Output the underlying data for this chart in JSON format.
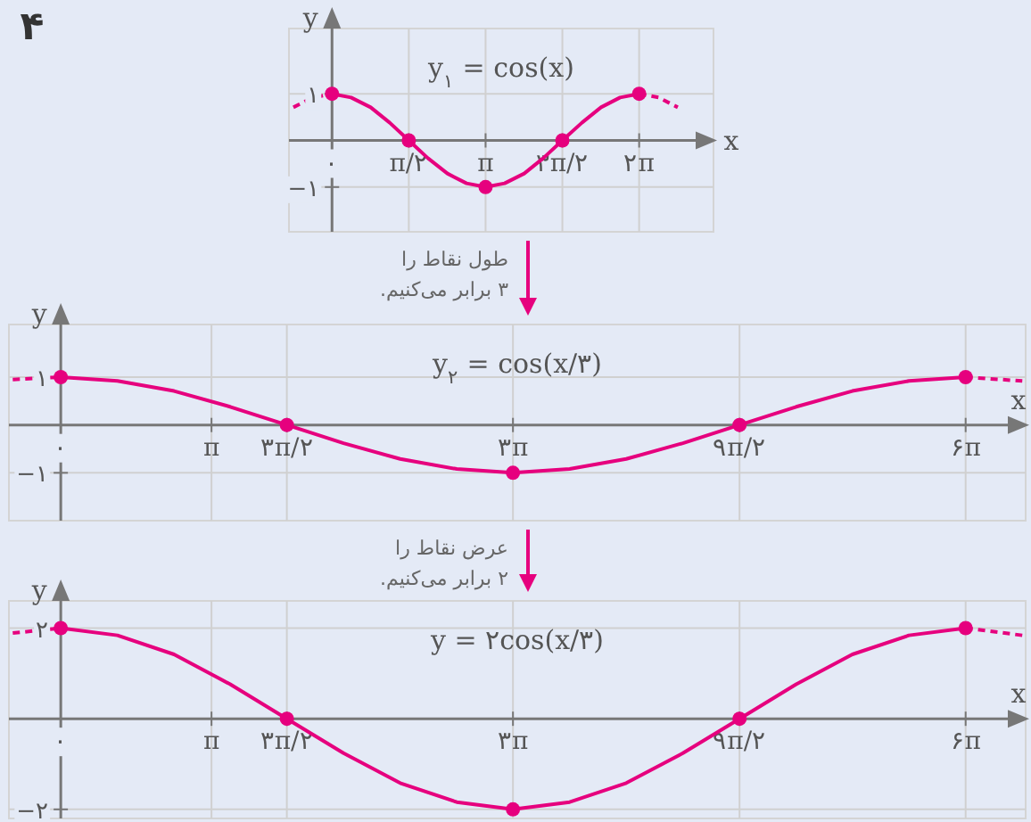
{
  "chart_data": [
    {
      "type": "line",
      "title": "y$_{۱}$ = cos(x)",
      "xlabel": "x",
      "ylabel": "y",
      "annotations": [
        "۴"
      ],
      "grid": true,
      "xlim": [
        -0.88,
        7.8
      ],
      "ylim": [
        -1.96,
        2.4
      ],
      "xticks": [
        {
          "value": 0,
          "label": "۰"
        },
        {
          "value": 1.57,
          "label": "π/۲"
        },
        {
          "value": 3.14,
          "label": "π"
        },
        {
          "value": 4.71,
          "label": "۳π/۲"
        },
        {
          "value": 6.28,
          "label": "۲π"
        }
      ],
      "yticks": [
        {
          "value": 1,
          "label": "۱"
        },
        {
          "value": -1,
          "label": "−۱"
        }
      ],
      "series": [
        {
          "type": "line",
          "color": "#e6007e",
          "line_style": "solid",
          "marker": "none",
          "x": [
            0,
            0.39,
            0.79,
            1.18,
            1.57,
            1.96,
            2.36,
            2.75,
            3.14,
            3.53,
            3.93,
            4.32,
            4.71,
            5.11,
            5.5,
            5.89,
            6.28
          ],
          "values": [
            1,
            0.92,
            0.71,
            0.38,
            0,
            -0.38,
            -0.71,
            -0.92,
            -1,
            -0.92,
            -0.71,
            -0.38,
            0,
            0.38,
            0.71,
            0.92,
            1
          ]
        },
        {
          "type": "line",
          "color": "#e6007e",
          "line_style": "dashed",
          "marker": "none",
          "x": [
            -0.79,
            -0.39,
            0
          ],
          "values": [
            0.71,
            0.92,
            1
          ]
        },
        {
          "type": "line",
          "color": "#e6007e",
          "line_style": "dashed",
          "marker": "none",
          "x": [
            6.28,
            6.68,
            7.07
          ],
          "values": [
            1,
            0.92,
            0.71
          ]
        },
        {
          "type": "scatter",
          "color": "#e6007e",
          "marker": "circle",
          "x": [
            0,
            1.57,
            3.14,
            4.71,
            6.28
          ],
          "values": [
            1,
            0,
            -1,
            0,
            1
          ]
        }
      ]
    },
    {
      "type": "line",
      "title": "y$_{۲}$ = cos(x/۳)",
      "xlabel": "x",
      "ylabel": "y",
      "annotations": [
        "طول نقاط را",
        "۳ برابر می‌کنیم."
      ],
      "grid": true,
      "xlim": [
        -1.08,
        20.1
      ],
      "ylim": [
        -2,
        2.1
      ],
      "xticks": [
        {
          "value": 0,
          "label": "۰"
        },
        {
          "value": 3.14,
          "label": "π"
        },
        {
          "value": 4.71,
          "label": "۳π/۲"
        },
        {
          "value": 9.42,
          "label": "۳π"
        },
        {
          "value": 14.14,
          "label": "۹π/۲"
        },
        {
          "value": 18.85,
          "label": "۶π"
        }
      ],
      "yticks": [
        {
          "value": 1,
          "label": "۱"
        },
        {
          "value": -1,
          "label": "−۱"
        }
      ],
      "series": [
        {
          "type": "line",
          "color": "#e6007e",
          "line_style": "solid",
          "marker": "none",
          "x": [
            0,
            1.18,
            2.36,
            3.53,
            4.71,
            5.89,
            7.07,
            8.25,
            9.42,
            10.6,
            11.78,
            12.96,
            14.14,
            15.32,
            16.49,
            17.67,
            18.85
          ],
          "values": [
            1,
            0.92,
            0.71,
            0.38,
            0,
            -0.38,
            -0.71,
            -0.92,
            -1,
            -0.92,
            -0.71,
            -0.38,
            0,
            0.38,
            0.71,
            0.92,
            1
          ]
        },
        {
          "type": "line",
          "color": "#e6007e",
          "line_style": "dashed",
          "marker": "none",
          "x": [
            -1,
            0
          ],
          "values": [
            0.95,
            1
          ]
        },
        {
          "type": "line",
          "color": "#e6007e",
          "line_style": "dashed",
          "marker": "none",
          "x": [
            18.85,
            20.03
          ],
          "values": [
            1,
            0.92
          ]
        },
        {
          "type": "scatter",
          "color": "#e6007e",
          "marker": "circle",
          "x": [
            0,
            4.71,
            9.42,
            14.14,
            18.85
          ],
          "values": [
            1,
            0,
            -1,
            0,
            1
          ]
        }
      ]
    },
    {
      "type": "line",
      "title": "y = ۲cos(x/۳)",
      "xlabel": "x",
      "ylabel": "y",
      "annotations": [
        "عرض نقاط را",
        "۲ برابر می‌کنیم."
      ],
      "grid": true,
      "xlim": [
        -1.08,
        20.1
      ],
      "ylim": [
        -2.2,
        2.6
      ],
      "xticks": [
        {
          "value": 0,
          "label": "۰"
        },
        {
          "value": 3.14,
          "label": "π"
        },
        {
          "value": 4.71,
          "label": "۳π/۲"
        },
        {
          "value": 9.42,
          "label": "۳π"
        },
        {
          "value": 14.14,
          "label": "۹π/۲"
        },
        {
          "value": 18.85,
          "label": "۶π"
        }
      ],
      "yticks": [
        {
          "value": 2,
          "label": "۲"
        },
        {
          "value": -2,
          "label": "−۲"
        }
      ],
      "series": [
        {
          "type": "line",
          "color": "#e6007e",
          "line_style": "solid",
          "marker": "none",
          "x": [
            0,
            1.18,
            2.36,
            3.53,
            4.71,
            5.89,
            7.07,
            8.25,
            9.42,
            10.6,
            11.78,
            12.96,
            14.14,
            15.32,
            16.49,
            17.67,
            18.85
          ],
          "values": [
            2,
            1.84,
            1.42,
            0.76,
            0,
            -0.76,
            -1.42,
            -1.84,
            -2,
            -1.84,
            -1.42,
            -0.76,
            0,
            0.76,
            1.42,
            1.84,
            2
          ]
        },
        {
          "type": "line",
          "color": "#e6007e",
          "line_style": "dashed",
          "marker": "none",
          "x": [
            -1,
            0
          ],
          "values": [
            1.89,
            2
          ]
        },
        {
          "type": "line",
          "color": "#e6007e",
          "line_style": "dashed",
          "marker": "none",
          "x": [
            18.85,
            20.03
          ],
          "values": [
            2,
            1.84
          ]
        },
        {
          "type": "scatter",
          "color": "#e6007e",
          "marker": "circle",
          "x": [
            0,
            4.71,
            9.42,
            14.14,
            18.85
          ],
          "values": [
            2,
            0,
            -2,
            0,
            2
          ]
        }
      ]
    }
  ]
}
